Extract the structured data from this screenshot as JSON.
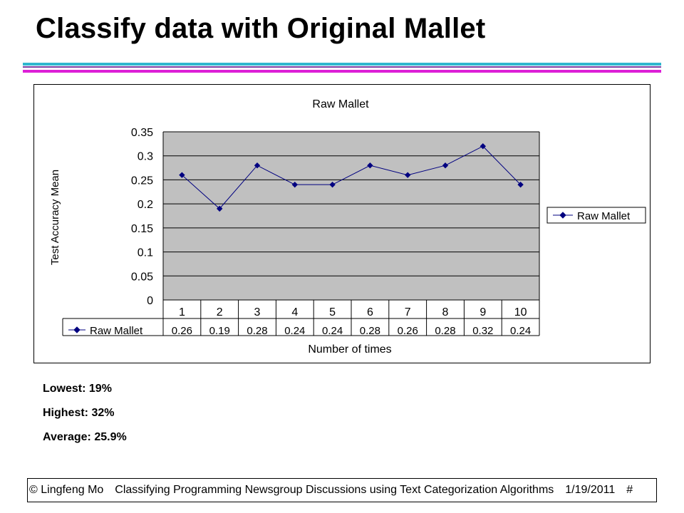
{
  "slide": {
    "title": "Classify data with Original Mallet"
  },
  "stats": {
    "lowest": "Lowest: 19%",
    "highest": "Highest: 32%",
    "average": "Average: 25.9%"
  },
  "footer": {
    "author": "© Lingfeng Mo",
    "subtitle": "Classifying Programming Newsgroup Discussions using Text Categorization Algorithms",
    "date": "1/19/2011",
    "page": "#"
  },
  "colors": {
    "rule_cyan": "#2fb7cf",
    "rule_purple": "#7b3fa5",
    "rule_magenta": "#dd1fd7",
    "plot_area": "#c0c0c0",
    "series": "#000080"
  },
  "chart_data": {
    "type": "line",
    "title": "Raw Mallet",
    "xlabel": "Number of times",
    "ylabel": "Test Accuracy Mean",
    "categories": [
      "1",
      "2",
      "3",
      "4",
      "5",
      "6",
      "7",
      "8",
      "9",
      "10"
    ],
    "series": [
      {
        "name": "Raw Mallet",
        "values": [
          0.26,
          0.19,
          0.28,
          0.24,
          0.24,
          0.28,
          0.26,
          0.28,
          0.32,
          0.24
        ],
        "value_labels": [
          "0.26",
          "0.19",
          "0.28",
          "0.24",
          "0.24",
          "0.28",
          "0.26",
          "0.28",
          "0.32",
          "0.24"
        ]
      }
    ],
    "ylim": [
      0,
      0.35
    ],
    "yticks": [
      0,
      0.05,
      0.1,
      0.15,
      0.2,
      0.25,
      0.3,
      0.35
    ],
    "ytick_labels": [
      "0",
      "0.05",
      "0.1",
      "0.15",
      "0.2",
      "0.25",
      "0.3",
      "0.35"
    ],
    "grid": true,
    "legend": "right",
    "data_table": true
  }
}
